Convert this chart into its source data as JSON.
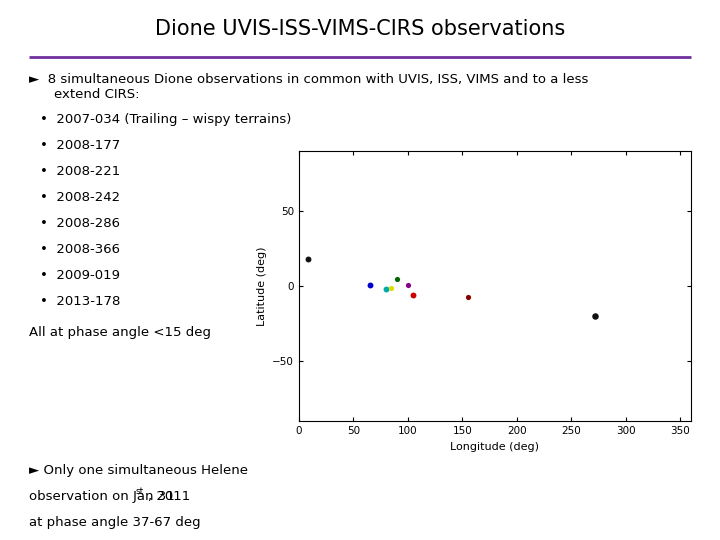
{
  "title": "Dione UVIS-ISS-VIMS-CIRS observations",
  "title_color": "#000000",
  "title_fontsize": 15,
  "separator_color": "#7030a0",
  "bg_color": "#ffffff",
  "arrow_bullet": "►",
  "header_line1": "8 simultaneous Dione observations in common with UVIS, ISS, VIMS and to a less",
  "header_line2": "extend CIRS:",
  "bullet_items": [
    "2007-034 (Trailing – wispy terrains)",
    "2008-177",
    "2008-221",
    "2008-242",
    "2008-286",
    "2008-366",
    "2009-019",
    "2013-178"
  ],
  "phase_note": "All at phase angle <15 deg",
  "helene_arrow": "►",
  "helene_line1": " Only one simultaneous Helene",
  "helene_line2": "observation on Jan 31",
  "helene_sup": "st",
  "helene_line3": ", 2011",
  "helene_line4": "at phase angle 37-67 deg",
  "scatter_points": [
    {
      "lon": 8,
      "lat": 18,
      "color": "#111111",
      "size": 18
    },
    {
      "lon": 65,
      "lat": 1,
      "color": "#0000cc",
      "size": 18
    },
    {
      "lon": 80,
      "lat": -2,
      "color": "#00aaaa",
      "size": 18
    },
    {
      "lon": 85,
      "lat": -1,
      "color": "#dddd00",
      "size": 14
    },
    {
      "lon": 90,
      "lat": 5,
      "color": "#006600",
      "size": 14
    },
    {
      "lon": 100,
      "lat": 1,
      "color": "#880088",
      "size": 14
    },
    {
      "lon": 105,
      "lat": -6,
      "color": "#cc0000",
      "size": 18
    },
    {
      "lon": 155,
      "lat": -7,
      "color": "#880000",
      "size": 14
    },
    {
      "lon": 272,
      "lat": -20,
      "color": "#111111",
      "size": 22
    }
  ],
  "xlabel": "Longitude (deg)",
  "ylabel": "Latitude (deg)",
  "xlim": [
    0,
    360
  ],
  "ylim": [
    -90,
    90
  ],
  "xticks": [
    0,
    50,
    100,
    150,
    200,
    250,
    300,
    350
  ],
  "yticks": [
    -50,
    0,
    50
  ]
}
